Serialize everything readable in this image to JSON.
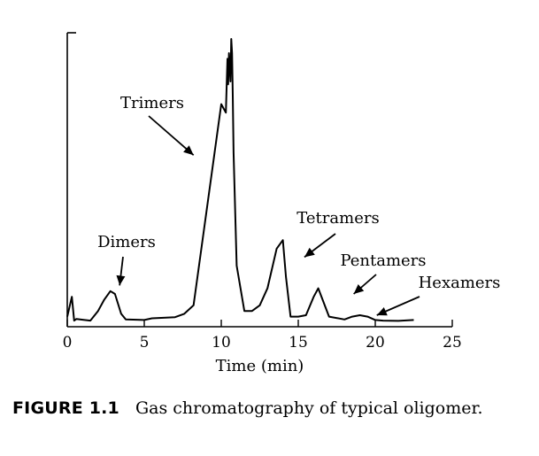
{
  "chart_data": {
    "type": "line",
    "title": "",
    "xlabel": "Time (min)",
    "ylabel": "",
    "xlim": [
      0,
      25
    ],
    "ylim": [
      0,
      100
    ],
    "x_ticks": [
      0,
      5,
      10,
      15,
      20,
      25
    ],
    "grid": false,
    "series": [
      {
        "x": [
          0,
          0.3,
          0.45,
          0.6,
          1.0,
          1.5,
          2.0,
          2.4,
          2.8,
          3.1,
          3.5,
          3.8,
          5.0,
          5.5,
          7.0,
          7.6,
          8.2,
          10.0,
          10.3,
          10.4,
          10.45,
          10.5,
          10.6,
          10.65,
          10.7,
          10.75,
          10.8,
          11.0,
          11.5,
          12.0,
          12.5,
          13.0,
          13.6,
          14.0,
          14.2,
          14.5,
          15.0,
          15.5,
          16.0,
          16.3,
          17.0,
          18.0,
          18.5,
          19.0,
          19.5,
          20.0,
          20.5,
          21.5,
          22.5
        ],
        "y": [
          2,
          9,
          0.6,
          1.2,
          0.9,
          0.6,
          4,
          8,
          11,
          10,
          3,
          1,
          0.8,
          1.4,
          1.8,
          3,
          6,
          77,
          74,
          93,
          84,
          95,
          85,
          100,
          95,
          80,
          60,
          20,
          4,
          4,
          6,
          12,
          26,
          29,
          16,
          2,
          2,
          2.5,
          9,
          12,
          2,
          1,
          2,
          2.5,
          2,
          0.8,
          0.6,
          0.5,
          0.8
        ]
      }
    ]
  },
  "annotations": [
    {
      "label": "Trimers",
      "x": 8.2,
      "y": 59
    },
    {
      "label": "Dimers",
      "x": 3.4,
      "y": 13
    },
    {
      "label": "Tetramers",
      "x": 15.4,
      "y": 23
    },
    {
      "label": "Pentamers",
      "x": 18.6,
      "y": 10
    },
    {
      "label": "Hexamers",
      "x": 20.1,
      "y": 2.5
    }
  ],
  "caption": {
    "figure_number": "FIGURE 1.1",
    "text": "Gas chromatography of typical oligomer."
  }
}
